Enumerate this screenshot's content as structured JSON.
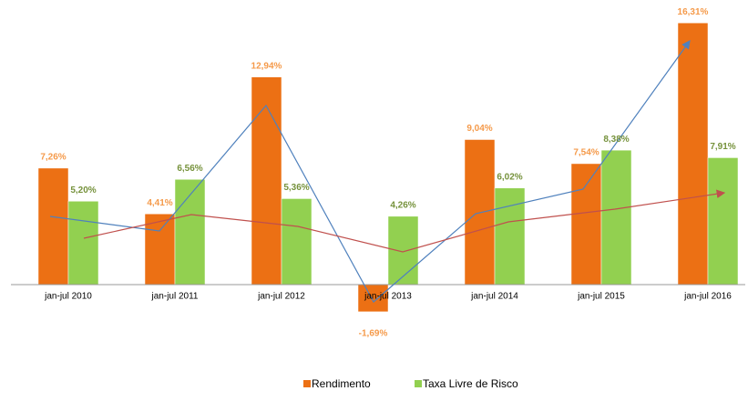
{
  "chart_data": {
    "type": "bar",
    "categories": [
      "jan-jul 2010",
      "jan-jul 2011",
      "jan-jul 2012",
      "jan-jul 2013",
      "jan-jul 2014",
      "jan-jul 2015",
      "jan-jul 2016"
    ],
    "series": [
      {
        "name": "Rendimento",
        "color": "#ec7014",
        "label_color": "#f59a4a",
        "values": [
          7.26,
          4.41,
          12.94,
          -1.69,
          9.04,
          7.54,
          16.31
        ],
        "value_labels": [
          "7,26%",
          "4,41%",
          "12,94%",
          "-1,69%",
          "9,04%",
          "7,54%",
          "16,31%"
        ]
      },
      {
        "name": "Taxa Livre de Risco",
        "color": "#92d050",
        "label_color": "#76923c",
        "values": [
          5.2,
          6.56,
          5.36,
          4.26,
          6.02,
          8.38,
          7.91
        ],
        "value_labels": [
          "5,20%",
          "6,56%",
          "5,36%",
          "4,26%",
          "6,02%",
          "8,38%",
          "7,91%"
        ]
      }
    ],
    "ylim": [
      -3,
      17
    ]
  }
}
